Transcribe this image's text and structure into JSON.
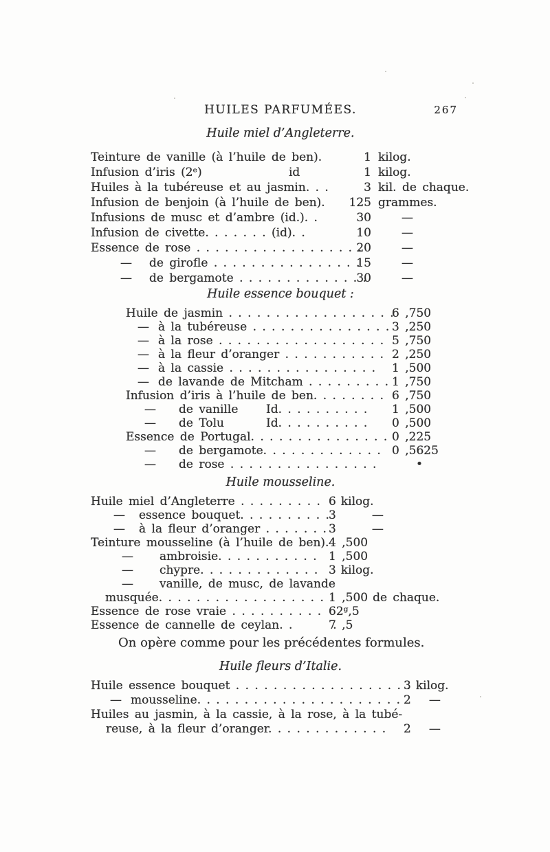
{
  "page": {
    "header_title": "HUILES PARFUMÉES.",
    "page_number": "267"
  },
  "sections": [
    {
      "id": "s1",
      "title": "Huile miel d’Angleterre.",
      "rows": [
        {
          "label": "Teinture de vanille (à l’huile de ben).",
          "value": "1",
          "unit": "kilog."
        },
        {
          "label": "Infusion d’iris (2ᵉ)",
          "mid": "id",
          "value": "1",
          "unit": "kilog."
        },
        {
          "label": "Huiles à la tubéreuse et au jasmin. . .",
          "value": "3",
          "unit": "kil. de chaque."
        },
        {
          "label": "Infusion de benjoin (à l’huile de ben).",
          "value": "125",
          "unit": "grammes."
        },
        {
          "label": "Infusions de musc et d’ambre (id.). .",
          "value": "30",
          "unit": "—"
        },
        {
          "label": "Infusion de civette. . . . . . . (id). .",
          "value": "10",
          "unit": "—"
        },
        {
          "label": "Essence de rose . . . . . . . . . . . . . . . . . .",
          "value": "20",
          "unit": "—"
        },
        {
          "prefix": "—",
          "label": "de girofle . . . . . . . . . . . . . . . .",
          "value": "15",
          "unit": "—"
        },
        {
          "prefix": "—",
          "label": "de bergamote . . . . . . . . . . . . . .",
          "value": "30",
          "unit": "—"
        }
      ]
    },
    {
      "id": "s2",
      "title": "Huile essence bouquet :",
      "rows": [
        {
          "label": "Huile de jasmin . . . . . . . . . . . . . . . . . .",
          "value": "6 ,750"
        },
        {
          "prefix": "—",
          "indent": "a",
          "label": "à la tubéreuse . . . . . . . . . . . . . . .",
          "value": "3 ,250"
        },
        {
          "prefix": "—",
          "indent": "a",
          "label": "à la rose . . . . . . . . . . . . . . . . . .",
          "value": "5 ,750"
        },
        {
          "prefix": "—",
          "indent": "a",
          "label": "à la fleur d’oranger . . . . . . . . . . .",
          "value": "2 ,250"
        },
        {
          "prefix": "—",
          "indent": "a",
          "label": "à la cassie . . . . . . . . . . . . . . . .",
          "value": "1 ,500"
        },
        {
          "prefix": "—",
          "indent": "a",
          "label": "de lavande de Mitcham . . . . . . . . .",
          "value": "1 ,750"
        },
        {
          "label": "Infusion d’iris à l’huile de ben. . . . . . . .",
          "value": "6 ,750"
        },
        {
          "prefix": "—",
          "indent": "b",
          "label": "de vanille",
          "mid": "Id. . . . . . . . . .",
          "value": "1 ,500"
        },
        {
          "prefix": "—",
          "indent": "b",
          "label": "de Tolu",
          "mid": "Id. . . . . . . . . .",
          "value": "0 ,500"
        },
        {
          "label": "Essence de Portugal. . . . . . . . . . . . . . .",
          "value": "0 ,225"
        },
        {
          "prefix": "—",
          "indent": "b",
          "label": "de bergamote. . . . . . . . . . . . .",
          "value": "0 ,5625"
        },
        {
          "prefix": "—",
          "indent": "b",
          "label": "de rose . . . . . . . . . . . . . . . .",
          "value": "•",
          "bullet": true
        }
      ]
    },
    {
      "id": "s3",
      "title": "Huile mousseline.",
      "rows": [
        {
          "label": "Huile miel d’Angleterre . . . . . . . . .",
          "value": "6",
          "unit": "kilog."
        },
        {
          "prefix": "—",
          "indent": "a",
          "label": "essence bouquet. . . . . . . . . .",
          "value": "3",
          "unit": "—"
        },
        {
          "prefix": "—",
          "indent": "a",
          "label": "à la fleur d’oranger . . . . . . .",
          "value": "3",
          "unit": "—"
        },
        {
          "label": "Teinture mousseline (à l’huile de ben).",
          "value": "4 ,500"
        },
        {
          "prefix": "—",
          "indent": "b",
          "label": "ambroisie. . . . . . . . . . .",
          "value": "1 ,500"
        },
        {
          "prefix": "—",
          "indent": "b",
          "label": "chypre. . . . . . . . . . . . .",
          "value": "3",
          "unit": "kilog."
        },
        {
          "prefix": "—",
          "indent": "b",
          "label": "vanille, de musc, de lavande"
        },
        {
          "cont": true,
          "label": "musquée. . . . . . . . . . . . . . . . . .",
          "value": "1 ,500",
          "unit": "de chaque."
        },
        {
          "label": "Essence de rose vraie . . . . . . . . . .",
          "value": "62ᵍ,5"
        },
        {
          "label": "Essence de cannelle de ceylan. .       .",
          "value": "7 ,5"
        }
      ],
      "footer": "On opère comme pour les précédentes formules."
    },
    {
      "id": "s4",
      "title": "Huile fleurs d’Italie.",
      "rows": [
        {
          "label": "Huile essence bouquet . . . . . . . . . . . . . . . . . . .",
          "value": "3",
          "unit": "kilog."
        },
        {
          "prefix": "—",
          "label": "mousseline. . . . . . . . . . . . . . . . . . . . . .",
          "value": "2",
          "unit": "—"
        },
        {
          "label": "Huiles au jasmin, à la cassie, à la rose, à la tubé-"
        },
        {
          "cont": true,
          "label": "reuse, à la fleur d’oranger. . . . . . . . . . . . .",
          "value": "2",
          "unit": "—"
        }
      ]
    }
  ]
}
